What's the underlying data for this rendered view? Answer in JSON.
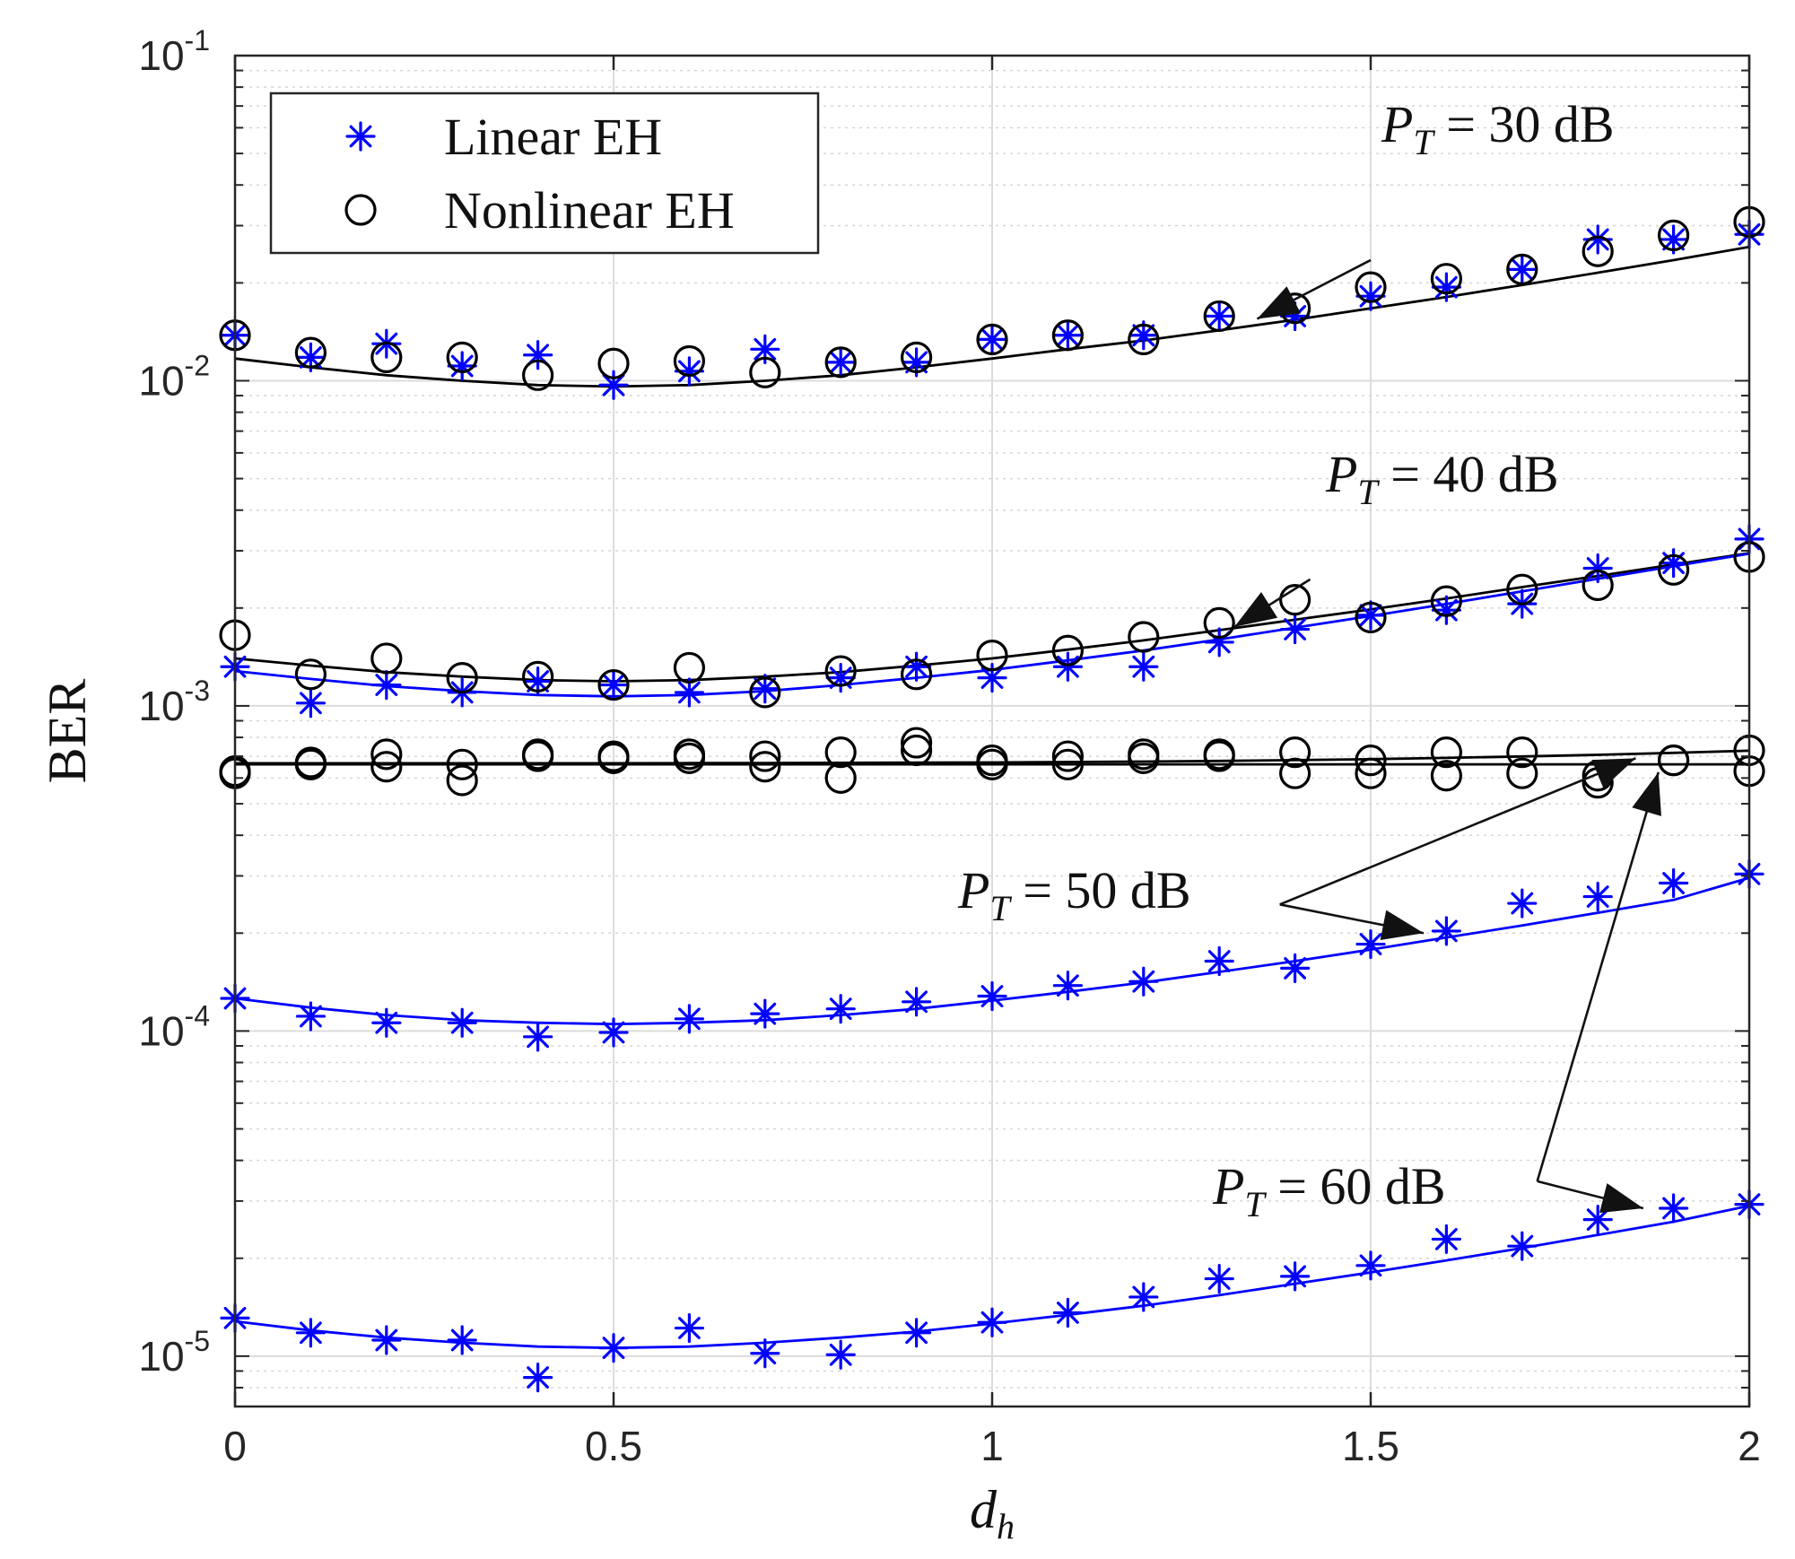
{
  "chart_data": {
    "type": "scatter",
    "title": "",
    "xlabel": "d",
    "xlabel_sub": "h",
    "ylabel": "BER",
    "xlim": [
      0,
      2
    ],
    "ylim": [
      7e-06,
      0.1
    ],
    "yscale": "log",
    "grid": true,
    "x_ticks": [
      0,
      0.5,
      1,
      1.5,
      2
    ],
    "x_tick_labels": [
      "0",
      "0.5",
      "1",
      "1.5",
      "2"
    ],
    "y_ticks": [
      {
        "value": 0.1,
        "base": "10",
        "exp": "-1"
      },
      {
        "value": 0.01,
        "base": "10",
        "exp": "-2"
      },
      {
        "value": 0.001,
        "base": "10",
        "exp": "-3"
      },
      {
        "value": 0.0001,
        "base": "10",
        "exp": "-4"
      },
      {
        "value": 1e-05,
        "base": "10",
        "exp": "-5"
      }
    ],
    "legend": {
      "position": "top-left",
      "entries": [
        {
          "label": "Linear EH",
          "marker": "asterisk",
          "color": "#0000ff"
        },
        {
          "label": "Nonlinear EH",
          "marker": "circle",
          "color": "#000000"
        }
      ]
    },
    "x": [
      0,
      0.1,
      0.2,
      0.3,
      0.4,
      0.5,
      0.6,
      0.7,
      0.8,
      0.9,
      1.0,
      1.1,
      1.2,
      1.3,
      1.4,
      1.5,
      1.6,
      1.7,
      1.8,
      1.9,
      2.0
    ],
    "series": [
      {
        "name": "Linear EH, P_T = 30 dB",
        "marker": "asterisk",
        "color": "#0000ff",
        "values": [
          0.0138,
          0.0118,
          0.013,
          0.0111,
          0.012,
          0.0097,
          0.0107,
          0.0125,
          0.0114,
          0.0114,
          0.0134,
          0.0138,
          0.0138,
          0.0158,
          0.0158,
          0.0182,
          0.0194,
          0.022,
          0.0272,
          0.0272,
          0.0282
        ]
      },
      {
        "name": "Nonlinear EH, P_T = 30 dB",
        "marker": "circle",
        "color": "#000000",
        "values": [
          0.0138,
          0.0122,
          0.0118,
          0.0118,
          0.0104,
          0.0113,
          0.0115,
          0.0106,
          0.0114,
          0.0118,
          0.0134,
          0.0138,
          0.0134,
          0.0158,
          0.0167,
          0.0194,
          0.0206,
          0.022,
          0.025,
          0.028,
          0.0308
        ]
      },
      {
        "name": "Linear EH, P_T = 40 dB",
        "marker": "asterisk",
        "color": "#0000ff",
        "values": [
          0.00132,
          0.00102,
          0.00116,
          0.0011,
          0.00119,
          0.00116,
          0.0011,
          0.00113,
          0.00122,
          0.00132,
          0.00122,
          0.00132,
          0.00132,
          0.00157,
          0.00172,
          0.0019,
          0.00197,
          0.00206,
          0.00265,
          0.00275,
          0.00326
        ]
      },
      {
        "name": "Nonlinear EH, P_T = 40 dB",
        "marker": "circle",
        "color": "#000000",
        "values": [
          0.00165,
          0.00125,
          0.0014,
          0.00122,
          0.00123,
          0.00116,
          0.00131,
          0.0011,
          0.00128,
          0.00125,
          0.00143,
          0.00148,
          0.00163,
          0.0018,
          0.00212,
          0.00187,
          0.0021,
          0.00228,
          0.00235,
          0.00262,
          0.00287
        ]
      },
      {
        "name": "Nonlinear EH, P_T = 50 dB (a)",
        "marker": "circle",
        "color": "#000000",
        "values": [
          0.00062,
          0.00067,
          0.00071,
          0.00066,
          0.00071,
          0.0007,
          0.00071,
          0.0007,
          0.00072,
          0.00077,
          0.00068,
          0.0007,
          0.00071,
          0.00071,
          0.00072,
          0.00068,
          0.00072,
          0.00072,
          0.00061,
          0.00068,
          0.00073
        ]
      },
      {
        "name": "Nonlinear EH, P_T = 50 dB (b)",
        "marker": "circle",
        "color": "#000000",
        "values": [
          0.00063,
          0.00066,
          0.00065,
          0.00059,
          0.0007,
          0.00069,
          0.00069,
          0.00065,
          0.0006,
          0.00073,
          0.00066,
          0.00066,
          0.00069,
          0.0007,
          0.00062,
          0.00062,
          0.00061,
          0.00062,
          0.00058,
          0.00068,
          0.00063
        ]
      },
      {
        "name": "Linear EH, P_T = 50 dB",
        "marker": "asterisk",
        "color": "#0000ff",
        "values": [
          0.000126,
          0.000111,
          0.000106,
          0.000106,
          9.6e-05,
          9.9e-05,
          0.000109,
          0.000113,
          0.000117,
          0.000123,
          0.000128,
          0.000138,
          0.000142,
          0.000164,
          0.000156,
          0.000185,
          0.000203,
          0.000247,
          0.000259,
          0.000285,
          0.000304
        ]
      },
      {
        "name": "Linear EH, P_T = 60 dB",
        "marker": "asterisk",
        "color": "#0000ff",
        "values": [
          1.31e-05,
          1.18e-05,
          1.12e-05,
          1.12e-05,
          8.6e-06,
          1.06e-05,
          1.22e-05,
          1.02e-05,
          1.01e-05,
          1.18e-05,
          1.27e-05,
          1.36e-05,
          1.52e-05,
          1.73e-05,
          1.76e-05,
          1.9e-05,
          2.29e-05,
          2.18e-05,
          2.63e-05,
          2.85e-05,
          2.93e-05
        ]
      }
    ],
    "curves": [
      {
        "name": "30 dB analytical",
        "color": "#000000",
        "values": [
          0.0117,
          0.011,
          0.0104,
          0.01,
          0.0097,
          0.0096,
          0.0097,
          0.01,
          0.0104,
          0.011,
          0.0117,
          0.0125,
          0.0133,
          0.0143,
          0.0154,
          0.0167,
          0.0181,
          0.0197,
          0.0215,
          0.0235,
          0.0258
        ]
      },
      {
        "name": "40 dB nonlinear analytical",
        "color": "#000000",
        "values": [
          0.0014,
          0.00133,
          0.00127,
          0.00123,
          0.0012,
          0.00119,
          0.0012,
          0.00123,
          0.00127,
          0.00133,
          0.0014,
          0.00149,
          0.00159,
          0.00171,
          0.00184,
          0.00198,
          0.00214,
          0.00232,
          0.00251,
          0.00272,
          0.00295
        ]
      },
      {
        "name": "40 dB linear analytical",
        "color": "#0000ff",
        "values": [
          0.00128,
          0.00121,
          0.00115,
          0.00111,
          0.00108,
          0.00107,
          0.00108,
          0.00111,
          0.00116,
          0.00122,
          0.00129,
          0.00138,
          0.00148,
          0.0016,
          0.00174,
          0.00189,
          0.00206,
          0.00225,
          0.00246,
          0.00269,
          0.00294
        ]
      },
      {
        "name": "50 dB nonlinear analytical",
        "color": "#000000",
        "values": [
          0.000666,
          0.000666,
          0.000666,
          0.000666,
          0.000666,
          0.000666,
          0.000667,
          0.000667,
          0.000668,
          0.000669,
          0.00067,
          0.000672,
          0.000674,
          0.000677,
          0.000681,
          0.000686,
          0.000692,
          0.000699,
          0.000707,
          0.000717,
          0.000728
        ]
      },
      {
        "name": "60 dB nonlinear analytical",
        "color": "#000000",
        "values": [
          0.000661,
          0.000661,
          0.000661,
          0.000661,
          0.000661,
          0.000661,
          0.000661,
          0.000661,
          0.000661,
          0.000661,
          0.000661,
          0.000661,
          0.000661,
          0.000661,
          0.000661,
          0.000661,
          0.000661,
          0.000661,
          0.000661,
          0.000661,
          0.000661
        ]
      },
      {
        "name": "50 dB linear analytical",
        "color": "#0000ff",
        "values": [
          0.000126,
          0.000118,
          0.000112,
          0.000108,
          0.000106,
          0.000105,
          0.000106,
          0.000108,
          0.000112,
          0.000117,
          0.000124,
          0.000132,
          0.000141,
          0.000152,
          0.000164,
          0.000178,
          0.000194,
          0.000211,
          0.000231,
          0.000253,
          0.000296
        ]
      },
      {
        "name": "60 dB linear analytical",
        "color": "#0000ff",
        "values": [
          1.28e-05,
          1.2e-05,
          1.14e-05,
          1.1e-05,
          1.07e-05,
          1.06e-05,
          1.07e-05,
          1.1e-05,
          1.14e-05,
          1.19e-05,
          1.26e-05,
          1.34e-05,
          1.43e-05,
          1.54e-05,
          1.67e-05,
          1.81e-05,
          1.97e-05,
          2.15e-05,
          2.36e-05,
          2.59e-05,
          2.9e-05
        ]
      }
    ],
    "annotations": [
      {
        "id": "pt30",
        "symbol": "P",
        "sub": "T",
        "rest": " = 30 dB",
        "arrows": [
          {
            "from_x": 1.5,
            "from_y": 0.0235,
            "to_x": 1.35,
            "to_y": 0.0155
          }
        ]
      },
      {
        "id": "pt40",
        "symbol": "P",
        "sub": "T",
        "rest": " = 40 dB",
        "arrows": [
          {
            "from_x": 1.42,
            "from_y": 0.00245,
            "to_x": 1.32,
            "to_y": 0.00175
          }
        ]
      },
      {
        "id": "pt50",
        "symbol": "P",
        "sub": "T",
        "rest": " = 50 dB",
        "arrows": [
          {
            "from_x": 1.38,
            "from_y": 0.000245,
            "to_x": 1.85,
            "to_y": 0.00069
          },
          {
            "from_x": 1.38,
            "from_y": 0.000245,
            "to_x": 1.57,
            "to_y": 0.0002
          }
        ]
      },
      {
        "id": "pt60",
        "symbol": "P",
        "sub": "T",
        "rest": " = 60 dB",
        "arrows": [
          {
            "from_x": 1.72,
            "from_y": 3.45e-05,
            "to_x": 1.88,
            "to_y": 0.000625
          },
          {
            "from_x": 1.72,
            "from_y": 3.45e-05,
            "to_x": 1.86,
            "to_y": 2.85e-05
          }
        ]
      }
    ]
  }
}
